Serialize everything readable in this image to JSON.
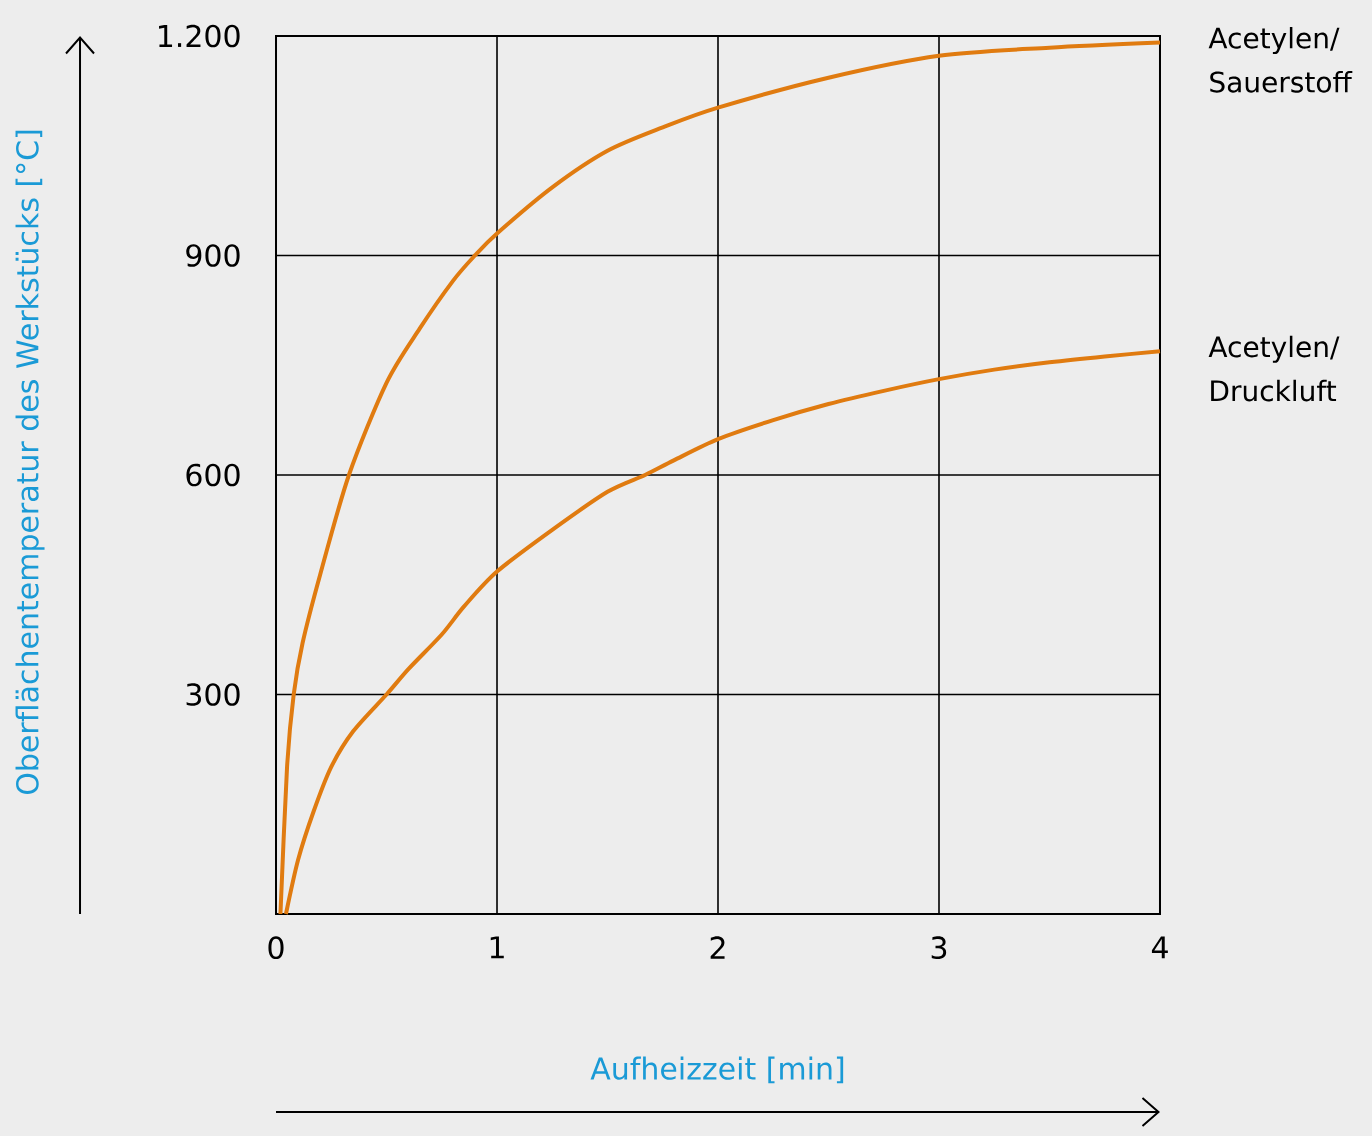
{
  "chart_data": {
    "type": "line",
    "xlabel": "Aufheizzeit [min]",
    "ylabel": "Oberflächentemperatur des Werkstücks [°C]",
    "xlim": [
      0,
      4
    ],
    "ylim": [
      0,
      1200
    ],
    "xticks": [
      0,
      1,
      2,
      3,
      4
    ],
    "yticks": [
      300,
      600,
      900,
      {
        "value": 1200,
        "label": "1.200"
      }
    ],
    "grid": true,
    "legend": false,
    "marker": "none",
    "line_style": "solid",
    "series": [
      {
        "name": "Acetylen/ Sauerstoff",
        "color": "#e07b10",
        "x": [
          0.02,
          0.05,
          0.08,
          0.12,
          0.2,
          0.33,
          0.5,
          0.65,
          0.8,
          0.9,
          1,
          1.25,
          1.5,
          1.75,
          2,
          2.5,
          3,
          3.5,
          4
        ],
        "values": [
          0,
          201,
          300,
          370,
          464,
          600,
          726,
          800,
          865,
          900,
          930,
          993,
          1043,
          1075,
          1102,
          1143,
          1173,
          1184,
          1191
        ]
      },
      {
        "name": "Acetylen/ Druckluft",
        "color": "#e07b10",
        "x": [
          0.045,
          0.1,
          0.17,
          0.25,
          0.35,
          0.5,
          0.6,
          0.75,
          0.85,
          1,
          1.25,
          1.5,
          1.67,
          1.8,
          2,
          2.25,
          2.5,
          2.75,
          3,
          3.25,
          3.5,
          3.75,
          4
        ],
        "values": [
          0,
          74,
          140,
          201,
          250,
          300,
          335,
          382,
          420,
          468,
          525,
          577,
          600,
          620,
          649,
          675,
          697,
          715,
          731,
          744,
          754,
          762,
          769
        ]
      }
    ]
  }
}
